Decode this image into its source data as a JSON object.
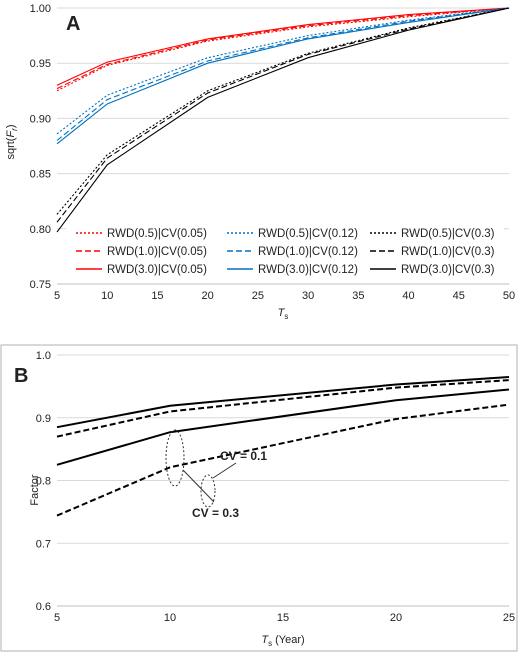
{
  "chart_data": [
    {
      "type": "line",
      "panel_label": "A",
      "ylabel": "sqrt(F_r)",
      "xlabel": "T_s",
      "xlim": [
        5,
        50
      ],
      "ylim": [
        0.75,
        1.0
      ],
      "x_ticks": [
        "5",
        "10",
        "15",
        "20",
        "25",
        "30",
        "35",
        "40",
        "45",
        "50"
      ],
      "y_ticks": [
        "0.75",
        "0.80",
        "0.85",
        "0.90",
        "0.95",
        "1.00"
      ],
      "grid": "horizontal",
      "legend_position": "bottom",
      "x": [
        5,
        10,
        20,
        30,
        40,
        50
      ],
      "series": [
        {
          "name": "RWD(0.5)|CV(0.05)",
          "color": "#ff0000",
          "style": "dotted",
          "values": [
            0.925,
            0.948,
            0.97,
            0.983,
            0.992,
            1.0
          ]
        },
        {
          "name": "RWD(1.0)|CV(0.05)",
          "color": "#ff0000",
          "style": "dashed",
          "values": [
            0.927,
            0.949,
            0.971,
            0.984,
            0.993,
            1.0
          ]
        },
        {
          "name": "RWD(3.0)|CV(0.05)",
          "color": "#ff0000",
          "style": "solid",
          "values": [
            0.93,
            0.951,
            0.972,
            0.985,
            0.994,
            1.0
          ]
        },
        {
          "name": "RWD(0.5)|CV(0.12)",
          "color": "#0070c0",
          "style": "dotted",
          "values": [
            0.886,
            0.921,
            0.955,
            0.975,
            0.989,
            1.0
          ]
        },
        {
          "name": "RWD(1.0)|CV(0.12)",
          "color": "#0070c0",
          "style": "dashed",
          "values": [
            0.88,
            0.917,
            0.952,
            0.973,
            0.988,
            1.0
          ]
        },
        {
          "name": "RWD(3.0)|CV(0.12)",
          "color": "#0070c0",
          "style": "solid",
          "values": [
            0.877,
            0.913,
            0.95,
            0.972,
            0.987,
            1.0
          ]
        },
        {
          "name": "RWD(0.5)|CV(0.3)",
          "color": "#000000",
          "style": "dotted",
          "values": [
            0.813,
            0.867,
            0.925,
            0.959,
            0.982,
            1.0
          ]
        },
        {
          "name": "RWD(1.0)|CV(0.3)",
          "color": "#000000",
          "style": "dashed",
          "values": [
            0.806,
            0.864,
            0.923,
            0.958,
            0.981,
            1.0
          ]
        },
        {
          "name": "RWD(3.0)|CV(0.3)",
          "color": "#000000",
          "style": "solid",
          "values": [
            0.797,
            0.858,
            0.919,
            0.955,
            0.98,
            1.0
          ]
        }
      ]
    },
    {
      "type": "line",
      "panel_label": "B",
      "ylabel": "Factor",
      "xlabel": "T_s (Year)",
      "xlim": [
        5,
        25
      ],
      "ylim": [
        0.6,
        1.0
      ],
      "x_ticks": [
        "5",
        "10",
        "15",
        "20",
        "25"
      ],
      "y_ticks": [
        "0.6",
        "0.7",
        "0.8",
        "0.9",
        "1.0"
      ],
      "grid": "horizontal",
      "x": [
        5,
        10,
        20,
        25
      ],
      "series": [
        {
          "color": "#000000",
          "style": "solid",
          "values": [
            0.885,
            0.919,
            0.953,
            0.965
          ]
        },
        {
          "color": "#000000",
          "style": "dashed",
          "values": [
            0.87,
            0.91,
            0.948,
            0.96
          ]
        },
        {
          "color": "#000000",
          "style": "solid",
          "values": [
            0.825,
            0.877,
            0.928,
            0.945
          ]
        },
        {
          "color": "#000000",
          "style": "dashed",
          "values": [
            0.744,
            0.821,
            0.898,
            0.921
          ]
        }
      ],
      "annotations": [
        {
          "text": "CV = 0.1",
          "at_x": 11.5,
          "at_y": 0.915
        },
        {
          "text": "CV = 0.3",
          "at_x": 10,
          "at_y": 0.83
        }
      ]
    }
  ]
}
